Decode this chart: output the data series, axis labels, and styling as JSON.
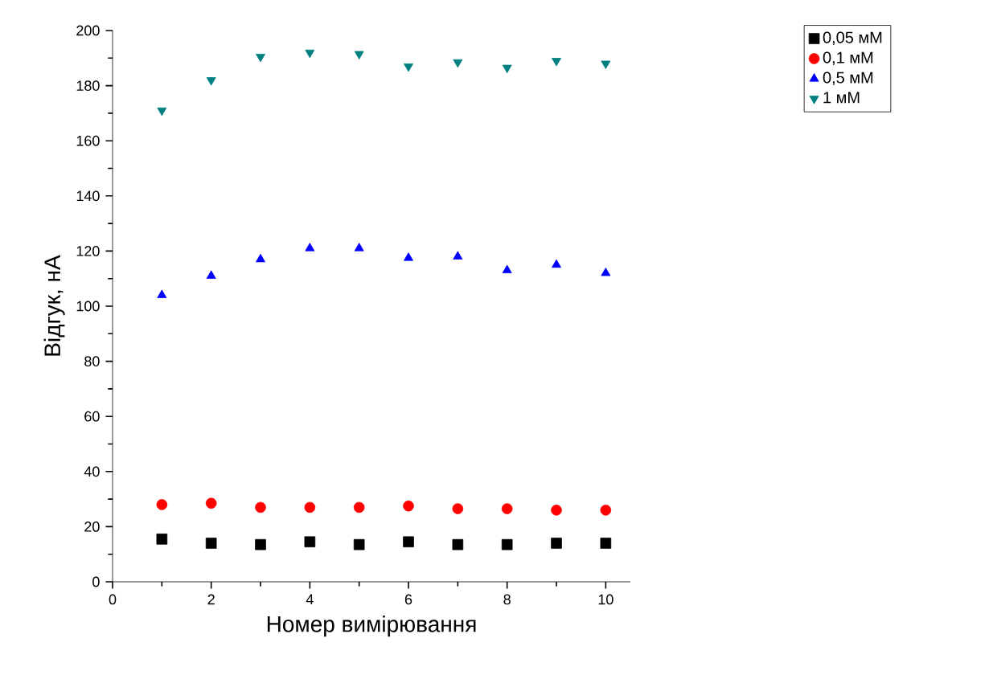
{
  "chart_data": {
    "type": "scatter",
    "xlabel": "Номер вимірювання",
    "ylabel": "Відгук, нА",
    "x": [
      1,
      2,
      3,
      4,
      5,
      6,
      7,
      8,
      9,
      10
    ],
    "xlim": [
      0,
      10.5
    ],
    "xticks": [
      0,
      2,
      4,
      6,
      8,
      10
    ],
    "ylim": [
      0,
      200
    ],
    "yticks": [
      0,
      20,
      40,
      60,
      80,
      100,
      120,
      140,
      160,
      180,
      200
    ],
    "grid": false,
    "legend": "top right",
    "series": [
      {
        "name": "0,05 мМ",
        "color": "#000000",
        "marker": "square",
        "values": [
          15.5,
          14,
          13.5,
          14.5,
          13.5,
          14.5,
          13.5,
          13.5,
          14,
          14
        ]
      },
      {
        "name": "0,1 мМ",
        "color": "#ff0000",
        "marker": "circle",
        "values": [
          28,
          28.5,
          27,
          27,
          27,
          27.5,
          26.5,
          26.5,
          26,
          26
        ]
      },
      {
        "name": "0,5 мМ",
        "color": "#0000ff",
        "marker": "triangle",
        "values": [
          104,
          111,
          117,
          121,
          121,
          117.5,
          118,
          113,
          115,
          112
        ]
      },
      {
        "name": "1 мМ",
        "color": "#008080",
        "marker": "triangle down",
        "values": [
          171,
          182,
          190.5,
          192,
          191.5,
          187,
          188.5,
          186.5,
          189,
          188
        ]
      }
    ]
  }
}
